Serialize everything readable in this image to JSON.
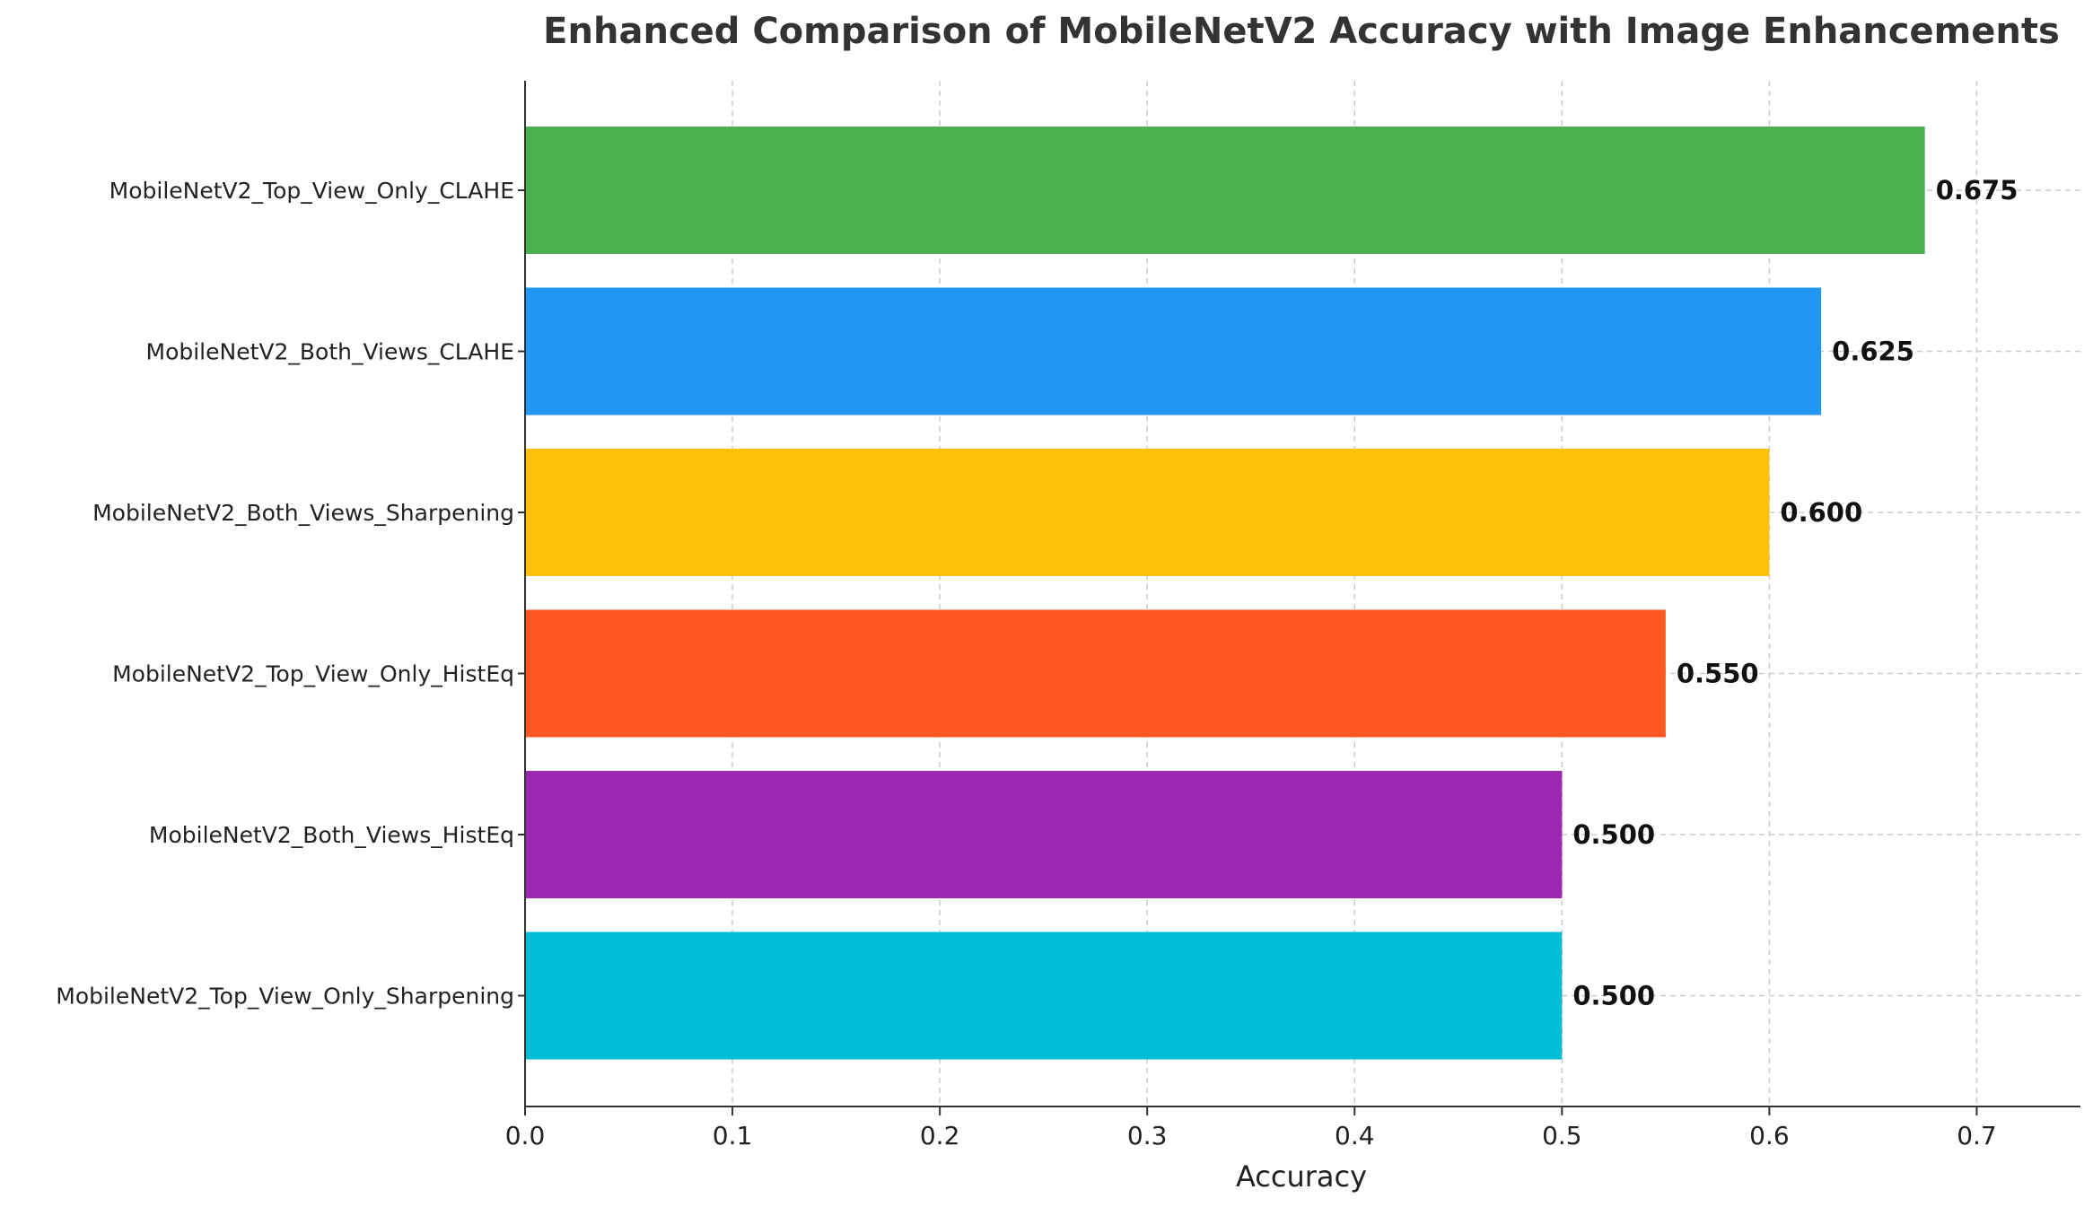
{
  "chart_data": {
    "type": "bar",
    "orientation": "horizontal",
    "title": "Enhanced Comparison of MobileNetV2 Accuracy with Image Enhancements",
    "xlabel": "Accuracy",
    "ylabel": "",
    "xlim": [
      0,
      0.75
    ],
    "xticks": [
      "0.0",
      "0.1",
      "0.2",
      "0.3",
      "0.4",
      "0.5",
      "0.6",
      "0.7"
    ],
    "grid": true,
    "categories": [
      "MobileNetV2_Top_View_Only_CLAHE",
      "MobileNetV2_Both_Views_CLAHE",
      "MobileNetV2_Both_Views_Sharpening",
      "MobileNetV2_Top_View_Only_HistEq",
      "MobileNetV2_Both_Views_HistEq",
      "MobileNetV2_Top_View_Only_Sharpening"
    ],
    "values": [
      0.675,
      0.625,
      0.6,
      0.55,
      0.5,
      0.5
    ],
    "value_labels": [
      "0.675",
      "0.625",
      "0.600",
      "0.550",
      "0.500",
      "0.500"
    ],
    "colors": [
      "#4caf50",
      "#2196f3",
      "#ffc107",
      "#ff5722",
      "#9c27b0",
      "#00bcd4"
    ]
  }
}
